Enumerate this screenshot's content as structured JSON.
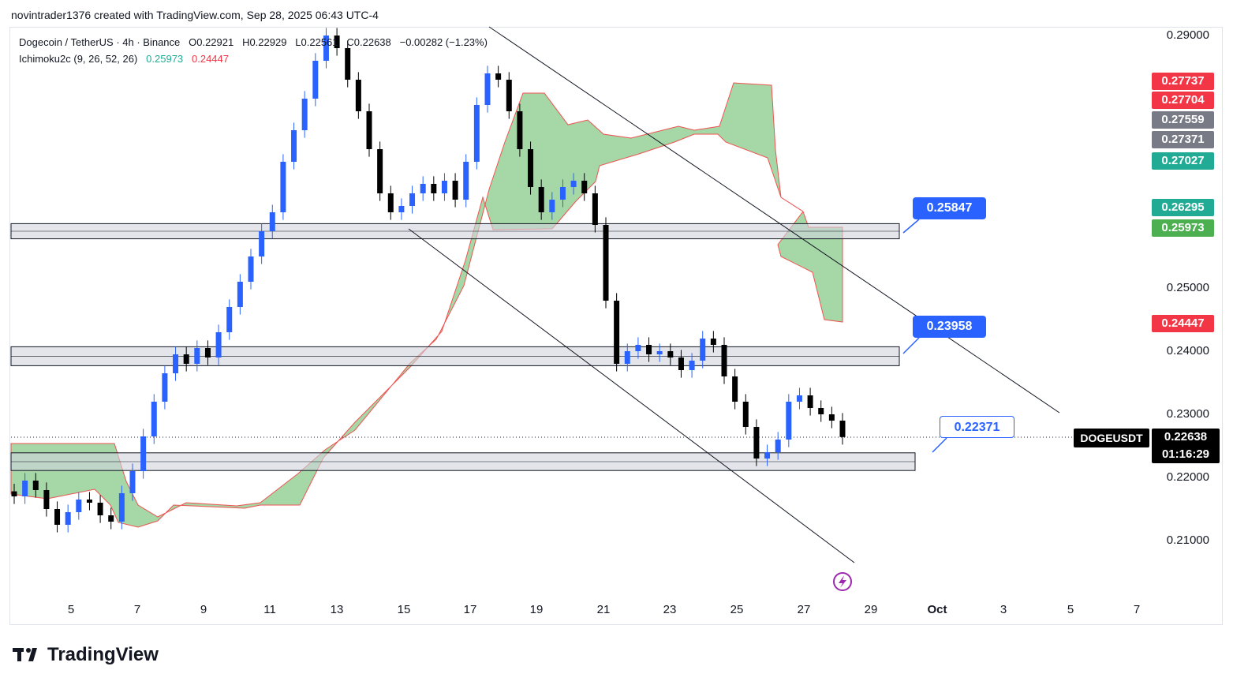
{
  "header": {
    "credit": "novintrader1376 created with TradingView.com, Sep 28, 2025 06:43 UTC-4"
  },
  "legend": {
    "title": "Dogecoin / TetherUS · 4h · Binance",
    "open": "O0.22921",
    "high": "H0.22929",
    "low": "L0.22561",
    "close": "C0.22638",
    "change": "−0.00282 (−1.23%)",
    "indicator": "Ichimoku2c (9, 26, 52, 26)",
    "ind_val1": "0.25973",
    "ind_val2": "0.24447"
  },
  "colors": {
    "up": "#2962ff",
    "down": "#000000",
    "cloud": "#4caf50",
    "cloud_edge": "#ef5350",
    "callout": "#2962ff"
  },
  "axis": {
    "y_ticks": [
      "0.29000",
      "0.25000",
      "0.24000",
      "0.23000",
      "0.22000",
      "0.21000"
    ],
    "x_ticks": [
      "5",
      "7",
      "9",
      "11",
      "13",
      "15",
      "17",
      "19",
      "21",
      "23",
      "25",
      "27",
      "29",
      "Oct",
      "3",
      "5",
      "7"
    ]
  },
  "price_tags": [
    {
      "value": "0.27737",
      "color": "#f23645"
    },
    {
      "value": "0.27704",
      "color": "#f23645"
    },
    {
      "value": "0.27559",
      "color": "#787b86"
    },
    {
      "value": "0.27371",
      "color": "#787b86"
    },
    {
      "value": "0.27027",
      "color": "#22ab94"
    },
    {
      "value": "0.26295",
      "color": "#22ab94"
    },
    {
      "value": "0.25973",
      "color": "#4caf50"
    },
    {
      "value": "0.24447",
      "color": "#f23645"
    }
  ],
  "current": {
    "symbol": "DOGEUSDT",
    "price": "0.22638",
    "countdown": "01:16:29"
  },
  "callouts": {
    "top": "0.25847",
    "middle": "0.23958",
    "bottom": "0.22371"
  },
  "brand": "TradingView",
  "chart_data": {
    "type": "candlestick",
    "symbol": "DOGEUSDT",
    "interval": "4h",
    "ylim": [
      0.2028,
      0.2928
    ],
    "x_axis": [
      "5",
      "7",
      "9",
      "11",
      "13",
      "15",
      "17",
      "19",
      "21",
      "23",
      "25",
      "27",
      "29",
      "Oct",
      "3",
      "5",
      "7"
    ],
    "support_resistance_zones": [
      {
        "low": 0.2578,
        "high": 0.2602
      },
      {
        "low": 0.2377,
        "high": 0.2407
      },
      {
        "low": 0.2211,
        "high": 0.2239
      }
    ],
    "levels_marked": [
      0.25847,
      0.23958,
      0.22371
    ],
    "current_price": 0.22638,
    "closes_approx": [
      0.217,
      0.2195,
      0.218,
      0.215,
      0.2125,
      0.2145,
      0.2165,
      0.216,
      0.214,
      0.213,
      0.2175,
      0.221,
      0.2265,
      0.232,
      0.2365,
      0.2395,
      0.238,
      0.2405,
      0.239,
      0.243,
      0.247,
      0.251,
      0.255,
      0.259,
      0.262,
      0.27,
      0.275,
      0.28,
      0.286,
      0.29,
      0.288,
      0.283,
      0.278,
      0.272,
      0.265,
      0.262,
      0.263,
      0.265,
      0.2665,
      0.265,
      0.267,
      0.264,
      0.27,
      0.279,
      0.284,
      0.283,
      0.278,
      0.272,
      0.266,
      0.262,
      0.264,
      0.266,
      0.267,
      0.265,
      0.26,
      0.248,
      0.238,
      0.24,
      0.241,
      0.2395,
      0.24,
      0.239,
      0.237,
      0.2385,
      0.242,
      0.241,
      0.236,
      0.232,
      0.228,
      0.223,
      0.224,
      0.226,
      0.232,
      0.233,
      0.231,
      0.23,
      0.229,
      0.2264
    ]
  }
}
